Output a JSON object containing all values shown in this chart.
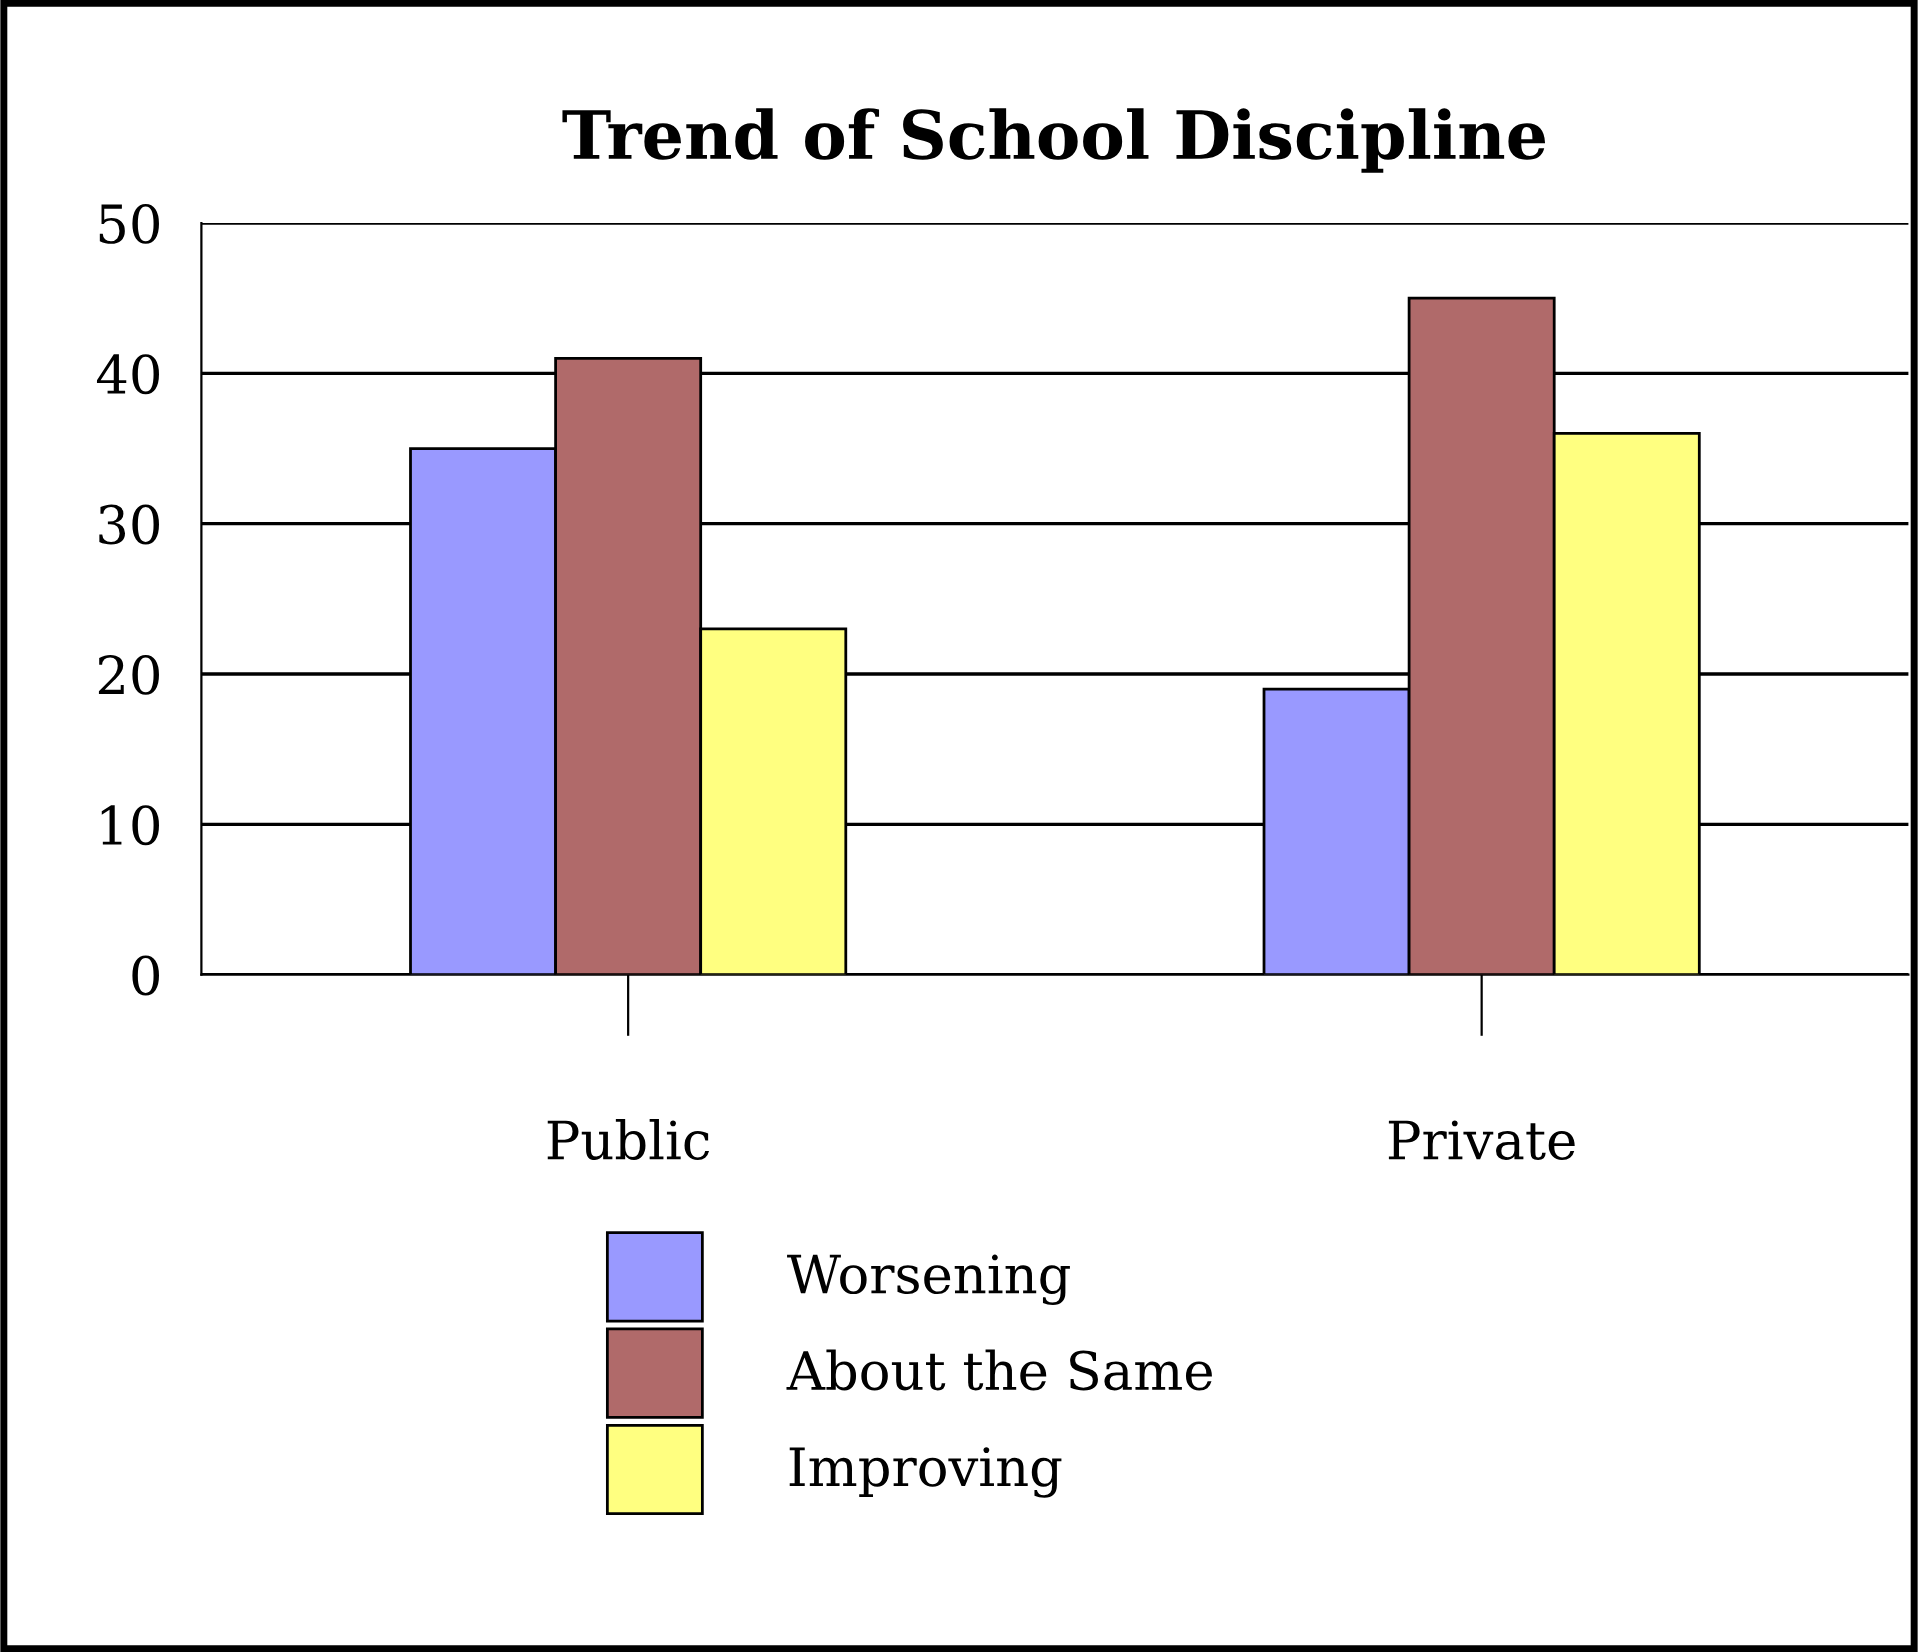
{
  "chart_data": {
    "type": "bar",
    "title": "Trend of School Discipline",
    "categories": [
      "Public",
      "Private"
    ],
    "series": [
      {
        "name": "Worsening",
        "color": "#9999ff",
        "values": [
          35,
          19
        ]
      },
      {
        "name": "About the Same",
        "color": "#b06a6a",
        "values": [
          41,
          45
        ]
      },
      {
        "name": "Improving",
        "color": "#ffff80",
        "values": [
          23,
          36
        ]
      }
    ],
    "ylim": [
      0,
      50
    ],
    "yticks": [
      0,
      10,
      20,
      30,
      40,
      50
    ],
    "grid": "y",
    "legend": "bottom"
  }
}
